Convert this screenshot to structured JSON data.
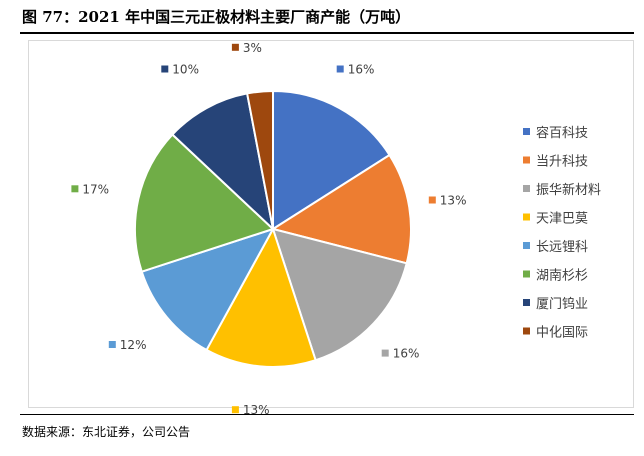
{
  "figure": {
    "title": "图 77：2021 年中国三元正极材料主要厂商产能（万吨）",
    "source": "数据来源：东北证券，公司公告"
  },
  "chart_data": {
    "type": "pie",
    "title": "",
    "legend_position": "right",
    "categories": [
      "容百科技",
      "当升科技",
      "振华新材料",
      "天津巴莫",
      "长远锂科",
      "湖南杉杉",
      "厦门钨业",
      "中化国际"
    ],
    "values": [
      16,
      13,
      16,
      13,
      12,
      17,
      10,
      3
    ],
    "labels": [
      "16%",
      "13%",
      "16%",
      "13%",
      "12%",
      "17%",
      "10%",
      "3%"
    ],
    "colors": [
      "#4472C4",
      "#ED7D31",
      "#A5A5A5",
      "#FFC000",
      "#5B9BD5",
      "#70AD47",
      "#264478",
      "#9E480E"
    ]
  }
}
